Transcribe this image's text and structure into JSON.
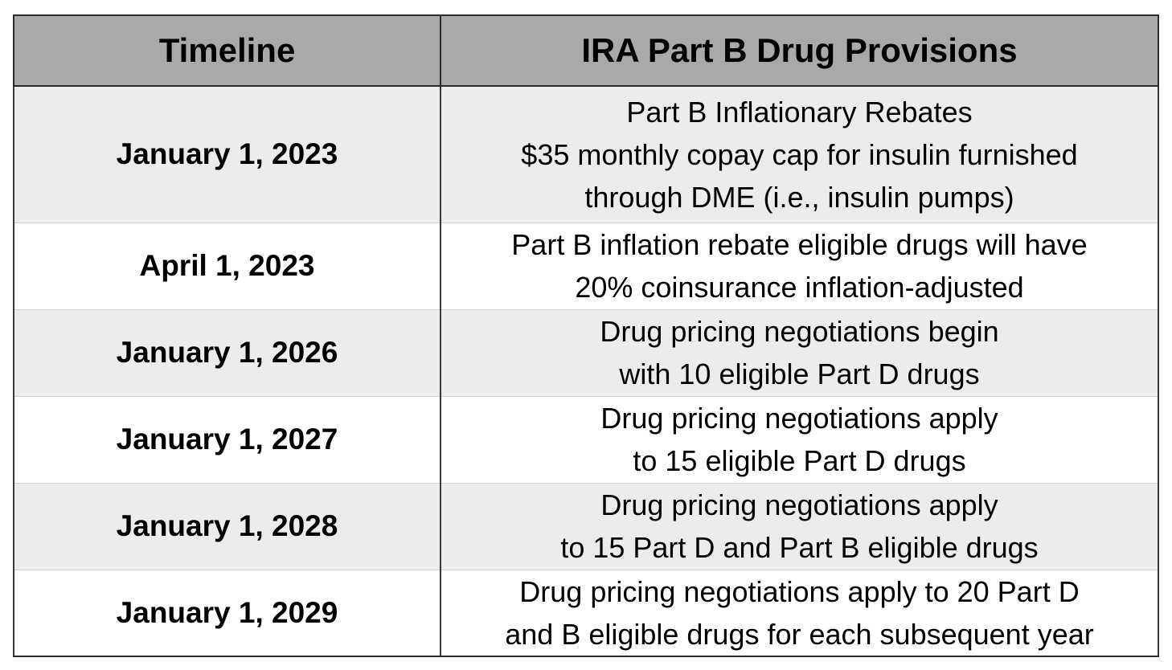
{
  "table": {
    "headers": {
      "timeline": "Timeline",
      "provisions": "IRA Part B Drug Provisions"
    },
    "rows": [
      {
        "date": "January 1, 2023",
        "lines": [
          "Part B Inflationary Rebates",
          "$35 monthly copay cap for insulin furnished",
          "through DME (i.e., insulin pumps)"
        ]
      },
      {
        "date": "April 1, 2023",
        "lines": [
          "Part B inflation rebate eligible drugs will have",
          "20% coinsurance inflation-adjusted"
        ]
      },
      {
        "date": "January 1, 2026",
        "lines": [
          "Drug pricing negotiations begin",
          "with 10 eligible Part D drugs"
        ]
      },
      {
        "date": "January 1, 2027",
        "lines": [
          "Drug pricing negotiations apply",
          "to 15 eligible Part D drugs"
        ]
      },
      {
        "date": "January 1, 2028",
        "lines": [
          "Drug pricing negotiations apply",
          "to 15 Part D and Part B eligible drugs"
        ]
      },
      {
        "date": "January 1, 2029",
        "lines": [
          "Drug pricing negotiations apply to 20 Part D",
          "and B eligible drugs for each subsequent year"
        ]
      }
    ],
    "colors": {
      "header_bg": "#a9a9a9",
      "shaded_row_bg": "#ececec",
      "plain_row_bg": "#ffffff"
    }
  }
}
